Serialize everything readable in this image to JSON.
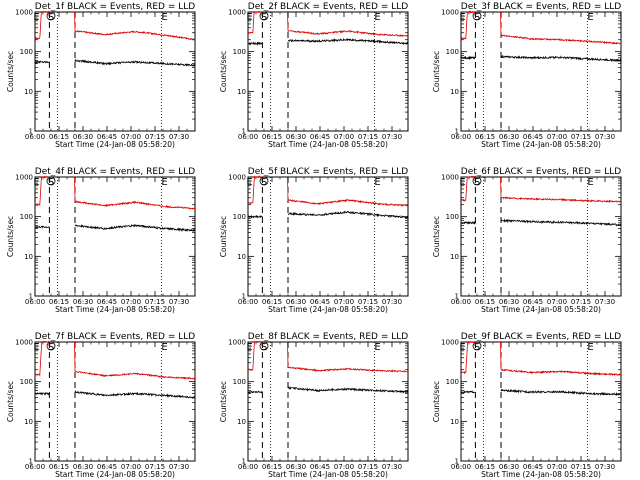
{
  "colors": {
    "events": "#000000",
    "lld": "#dd0000",
    "background": "#ffffff",
    "frame": "#000000"
  },
  "chart_data": [
    {
      "type": "line",
      "title": "Det_1f BLACK = Events, RED = LLD",
      "xlabel": "Start Time (24-Jan-08 05:58:20)",
      "ylabel": "Counts/sec",
      "yscale": "log",
      "ylim": [
        1,
        1000
      ],
      "xlim": [
        "06:00",
        "07:40"
      ],
      "xticks": [
        "06:00",
        "06:15",
        "06:30",
        "06:45",
        "07:00",
        "07:15",
        "07:30"
      ],
      "yticks": [
        "1",
        "10",
        "100",
        "1000"
      ],
      "grid": false,
      "markers": [
        "E",
        "S",
        "E"
      ],
      "dashed_lines": [
        "06:09",
        "06:25"
      ],
      "dotted_lines": [
        "06:14",
        "07:19"
      ],
      "series": [
        {
          "name": "Events",
          "color": "#000000",
          "level_before": 55,
          "level_after": [
            60,
            50,
            55,
            50,
            45
          ]
        },
        {
          "name": "LLD",
          "color": "#dd0000",
          "level_before": 220,
          "level_after": [
            330,
            270,
            320,
            260,
            200
          ]
        }
      ]
    },
    {
      "type": "line",
      "title": "Det_2f BLACK = Events, RED = LLD",
      "xlabel": "Start Time (24-Jan-08 05:58:20)",
      "ylabel": "Counts/sec",
      "yscale": "log",
      "ylim": [
        1,
        1000
      ],
      "xlim": [
        "06:00",
        "07:40"
      ],
      "xticks": [
        "06:00",
        "06:15",
        "06:30",
        "06:45",
        "07:00",
        "07:15",
        "07:30"
      ],
      "yticks": [
        "1",
        "10",
        "100",
        "1000"
      ],
      "grid": false,
      "markers": [
        "E",
        "S",
        "E"
      ],
      "dashed_lines": [
        "06:09",
        "06:25"
      ],
      "dotted_lines": [
        "06:14",
        "07:19"
      ],
      "series": [
        {
          "name": "Events",
          "color": "#000000",
          "level_before": 160,
          "level_after": [
            190,
            185,
            200,
            180,
            160
          ]
        },
        {
          "name": "LLD",
          "color": "#dd0000",
          "level_before": 300,
          "level_after": [
            340,
            280,
            330,
            270,
            250
          ]
        }
      ]
    },
    {
      "type": "line",
      "title": "Det_3f BLACK = Events, RED = LLD",
      "xlabel": "Start Time (24-Jan-08 05:58:20)",
      "ylabel": "Counts/sec",
      "yscale": "log",
      "ylim": [
        1,
        1000
      ],
      "xlim": [
        "06:00",
        "07:40"
      ],
      "xticks": [
        "06:00",
        "06:15",
        "06:30",
        "06:45",
        "07:00",
        "07:15",
        "07:30"
      ],
      "yticks": [
        "1",
        "10",
        "100",
        "1000"
      ],
      "grid": false,
      "markers": [
        "E",
        "S",
        "E"
      ],
      "dashed_lines": [
        "06:09",
        "06:25"
      ],
      "dotted_lines": [
        "06:14",
        "07:19"
      ],
      "series": [
        {
          "name": "Events",
          "color": "#000000",
          "level_before": 70,
          "level_after": [
            75,
            70,
            72,
            65,
            60
          ]
        },
        {
          "name": "LLD",
          "color": "#dd0000",
          "level_before": 220,
          "level_after": [
            260,
            210,
            200,
            180,
            160
          ]
        }
      ]
    },
    {
      "type": "line",
      "title": "Det_4f BLACK = Events, RED = LLD",
      "xlabel": "Start Time (24-Jan-08 05:58:20)",
      "ylabel": "Counts/sec",
      "yscale": "log",
      "ylim": [
        1,
        1000
      ],
      "xlim": [
        "06:00",
        "07:40"
      ],
      "xticks": [
        "06:00",
        "06:15",
        "06:30",
        "06:45",
        "07:00",
        "07:15",
        "07:30"
      ],
      "yticks": [
        "1",
        "10",
        "100",
        "1000"
      ],
      "grid": false,
      "markers": [
        "E",
        "S",
        "E"
      ],
      "dashed_lines": [
        "06:09",
        "06:25"
      ],
      "dotted_lines": [
        "06:14",
        "07:19"
      ],
      "series": [
        {
          "name": "Events",
          "color": "#000000",
          "level_before": 55,
          "level_after": [
            60,
            50,
            60,
            50,
            45
          ]
        },
        {
          "name": "LLD",
          "color": "#dd0000",
          "level_before": 200,
          "level_after": [
            240,
            190,
            230,
            180,
            160
          ]
        }
      ]
    },
    {
      "type": "line",
      "title": "Det_5f BLACK = Events, RED = LLD",
      "xlabel": "Start Time (24-Jan-08 05:58:20)",
      "ylabel": "Counts/sec",
      "yscale": "log",
      "ylim": [
        1,
        1000
      ],
      "xlim": [
        "06:00",
        "07:40"
      ],
      "xticks": [
        "06:00",
        "06:15",
        "06:30",
        "06:45",
        "07:00",
        "07:15",
        "07:30"
      ],
      "yticks": [
        "1",
        "10",
        "100",
        "1000"
      ],
      "grid": false,
      "markers": [
        "E",
        "S",
        "E"
      ],
      "dashed_lines": [
        "06:09",
        "06:25"
      ],
      "dotted_lines": [
        "06:14",
        "07:19"
      ],
      "series": [
        {
          "name": "Events",
          "color": "#000000",
          "level_before": 100,
          "level_after": [
            120,
            110,
            130,
            110,
            95
          ]
        },
        {
          "name": "LLD",
          "color": "#dd0000",
          "level_before": 220,
          "level_after": [
            260,
            210,
            260,
            210,
            190
          ]
        }
      ]
    },
    {
      "type": "line",
      "title": "Det_6f BLACK = Events, RED = LLD",
      "xlabel": "Start Time (24-Jan-08 05:58:20)",
      "ylabel": "Counts/sec",
      "yscale": "log",
      "ylim": [
        1,
        1000
      ],
      "xlim": [
        "06:00",
        "07:40"
      ],
      "xticks": [
        "06:00",
        "06:15",
        "06:30",
        "06:45",
        "07:00",
        "07:15",
        "07:30"
      ],
      "yticks": [
        "1",
        "10",
        "100",
        "1000"
      ],
      "grid": false,
      "markers": [
        "E",
        "S",
        "E"
      ],
      "dashed_lines": [
        "06:09",
        "06:25"
      ],
      "dotted_lines": [
        "06:14",
        "07:19"
      ],
      "series": [
        {
          "name": "Events",
          "color": "#000000",
          "level_before": 70,
          "level_after": [
            80,
            75,
            72,
            68,
            62
          ]
        },
        {
          "name": "LLD",
          "color": "#dd0000",
          "level_before": 260,
          "level_after": [
            300,
            280,
            270,
            250,
            240
          ]
        }
      ]
    },
    {
      "type": "line",
      "title": "Det_7f BLACK = Events, RED = LLD",
      "xlabel": "Start Time (24-Jan-08 05:58:20)",
      "ylabel": "Counts/sec",
      "yscale": "log",
      "ylim": [
        1,
        1000
      ],
      "xlim": [
        "06:00",
        "07:40"
      ],
      "xticks": [
        "06:00",
        "06:15",
        "06:30",
        "06:45",
        "07:00",
        "07:15",
        "07:30"
      ],
      "yticks": [
        "1",
        "10",
        "100",
        "1000"
      ],
      "grid": false,
      "markers": [
        "E",
        "S",
        "E"
      ],
      "dashed_lines": [
        "06:09",
        "06:25"
      ],
      "dotted_lines": [
        "06:14",
        "07:19"
      ],
      "series": [
        {
          "name": "Events",
          "color": "#000000",
          "level_before": 50,
          "level_after": [
            55,
            45,
            50,
            45,
            40
          ]
        },
        {
          "name": "LLD",
          "color": "#dd0000",
          "level_before": 150,
          "level_after": [
            180,
            140,
            160,
            130,
            120
          ]
        }
      ]
    },
    {
      "type": "line",
      "title": "Det_8f BLACK = Events, RED = LLD",
      "xlabel": "Start Time (24-Jan-08 05:58:20)",
      "ylabel": "Counts/sec",
      "yscale": "log",
      "ylim": [
        1,
        1000
      ],
      "xlim": [
        "06:00",
        "07:40"
      ],
      "xticks": [
        "06:00",
        "06:15",
        "06:30",
        "06:45",
        "07:00",
        "07:15",
        "07:30"
      ],
      "yticks": [
        "1",
        "10",
        "100",
        "1000"
      ],
      "grid": false,
      "markers": [
        "E",
        "S",
        "E"
      ],
      "dashed_lines": [
        "06:09",
        "06:25"
      ],
      "dotted_lines": [
        "06:14",
        "07:19"
      ],
      "series": [
        {
          "name": "Events",
          "color": "#000000",
          "level_before": 55,
          "level_after": [
            70,
            60,
            65,
            60,
            55
          ]
        },
        {
          "name": "LLD",
          "color": "#dd0000",
          "level_before": 200,
          "level_after": [
            230,
            190,
            210,
            190,
            180
          ]
        }
      ]
    },
    {
      "type": "line",
      "title": "Det_9f BLACK = Events, RED = LLD",
      "xlabel": "Start Time (24-Jan-08 05:58:20)",
      "ylabel": "Counts/sec",
      "yscale": "log",
      "ylim": [
        1,
        1000
      ],
      "xlim": [
        "06:00",
        "07:40"
      ],
      "xticks": [
        "06:00",
        "06:15",
        "06:30",
        "06:45",
        "07:00",
        "07:15",
        "07:30"
      ],
      "yticks": [
        "1",
        "10",
        "100",
        "1000"
      ],
      "grid": false,
      "markers": [
        "E",
        "S",
        "E"
      ],
      "dashed_lines": [
        "06:09",
        "06:25"
      ],
      "dotted_lines": [
        "06:14",
        "07:19"
      ],
      "series": [
        {
          "name": "Events",
          "color": "#000000",
          "level_before": 55,
          "level_after": [
            60,
            55,
            55,
            50,
            48
          ]
        },
        {
          "name": "LLD",
          "color": "#dd0000",
          "level_before": 170,
          "level_after": [
            200,
            170,
            180,
            160,
            150
          ]
        }
      ]
    }
  ]
}
